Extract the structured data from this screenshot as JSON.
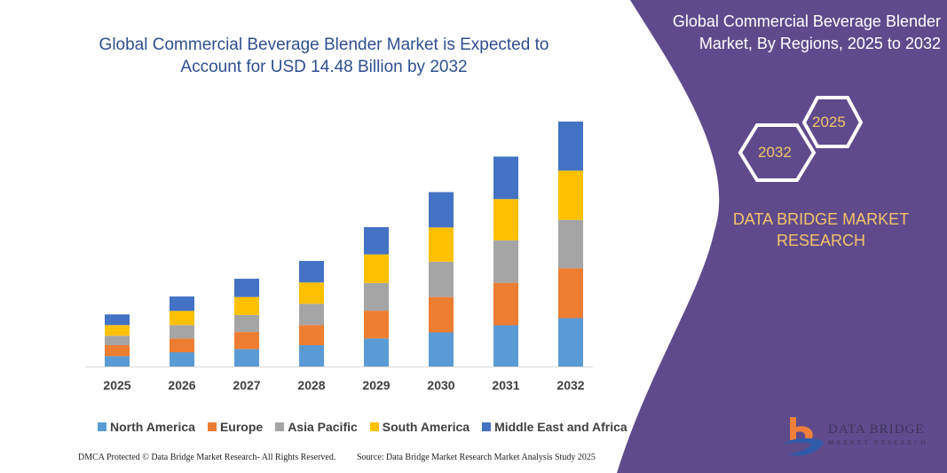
{
  "title": "Global Commercial Beverage Blender Market is Expected to Account for USD 14.48 Billion by 2032",
  "right_panel": {
    "title": "Global Commercial Beverage Blender Market, By Regions, 2025 to 2032",
    "hex_years": [
      "2025",
      "2032"
    ],
    "brand": "DATA BRIDGE MARKET RESEARCH",
    "logo_text_1": "DATA BRIDGE",
    "logo_text_2": "MARKET RESEARCH",
    "background_color": "#5f4b8b",
    "accent_color": "#f5c26b"
  },
  "footer": {
    "left": "DMCA Protected © Data Bridge Market Research- All Rights Reserved.",
    "right": "Source: Data Bridge Market Research Market Analysis Study 2025"
  },
  "chart_data": {
    "type": "bar",
    "stacked": true,
    "title": "Global Commercial Beverage Blender Market is Expected to Account for USD 14.48 Billion by 2032",
    "xlabel": "",
    "ylabel": "",
    "unit": "USD Billion",
    "grid": false,
    "legend_placement": "bottom",
    "categories": [
      "2025",
      "2026",
      "2027",
      "2028",
      "2029",
      "2030",
      "2031",
      "2032"
    ],
    "series": [
      {
        "name": "North America",
        "color": "#5b9bd5",
        "values": [
          0.61,
          0.84,
          1.03,
          1.26,
          1.66,
          2.02,
          2.44,
          2.86
        ]
      },
      {
        "name": "Europe",
        "color": "#ed7d31",
        "values": [
          0.65,
          0.82,
          1.01,
          1.19,
          1.64,
          2.09,
          2.51,
          2.95
        ]
      },
      {
        "name": "Asia Pacific",
        "color": "#a5a5a5",
        "values": [
          0.56,
          0.79,
          1.01,
          1.26,
          1.64,
          2.09,
          2.51,
          2.86
        ]
      },
      {
        "name": "South America",
        "color": "#ffc000",
        "values": [
          0.63,
          0.84,
          1.06,
          1.26,
          1.69,
          2.02,
          2.44,
          2.91
        ]
      },
      {
        "name": "Middle East and Africa",
        "color": "#4472c4",
        "values": [
          0.63,
          0.85,
          1.08,
          1.27,
          1.61,
          2.09,
          2.51,
          2.9
        ]
      }
    ]
  }
}
